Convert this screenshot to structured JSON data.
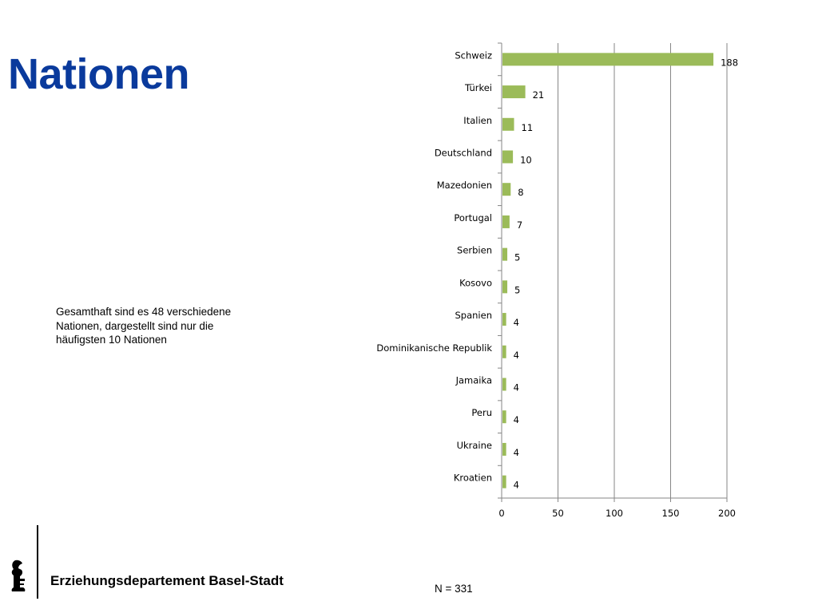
{
  "slide": {
    "title": "Nationen",
    "note": "Gesamthaft sind es 48 verschiedene Nationen, dargestellt sind nur die häufigsten 10 Nationen",
    "footer": "Erziehungsdepartement Basel-Stadt",
    "sample_size": "N = 331"
  },
  "colors": {
    "title": "#0a3a9c",
    "bar": "#9bbb59",
    "axis": "#868686",
    "grid": "#868686"
  },
  "chart_data": {
    "type": "bar",
    "orientation": "horizontal",
    "categories": [
      "Schweiz",
      "Türkei",
      "Italien",
      "Deutschland",
      "Mazedonien",
      "Portugal",
      "Serbien",
      "Kosovo",
      "Spanien",
      "Dominikanische Republik",
      "Jamaika",
      "Peru",
      "Ukraine",
      "Kroatien"
    ],
    "values": [
      188,
      21,
      11,
      10,
      8,
      7,
      5,
      5,
      4,
      4,
      4,
      4,
      4,
      4
    ],
    "xlim": [
      0,
      200
    ],
    "xticks": [
      0,
      50,
      100,
      150,
      200
    ],
    "grid": "vertical",
    "data_labels": true
  }
}
